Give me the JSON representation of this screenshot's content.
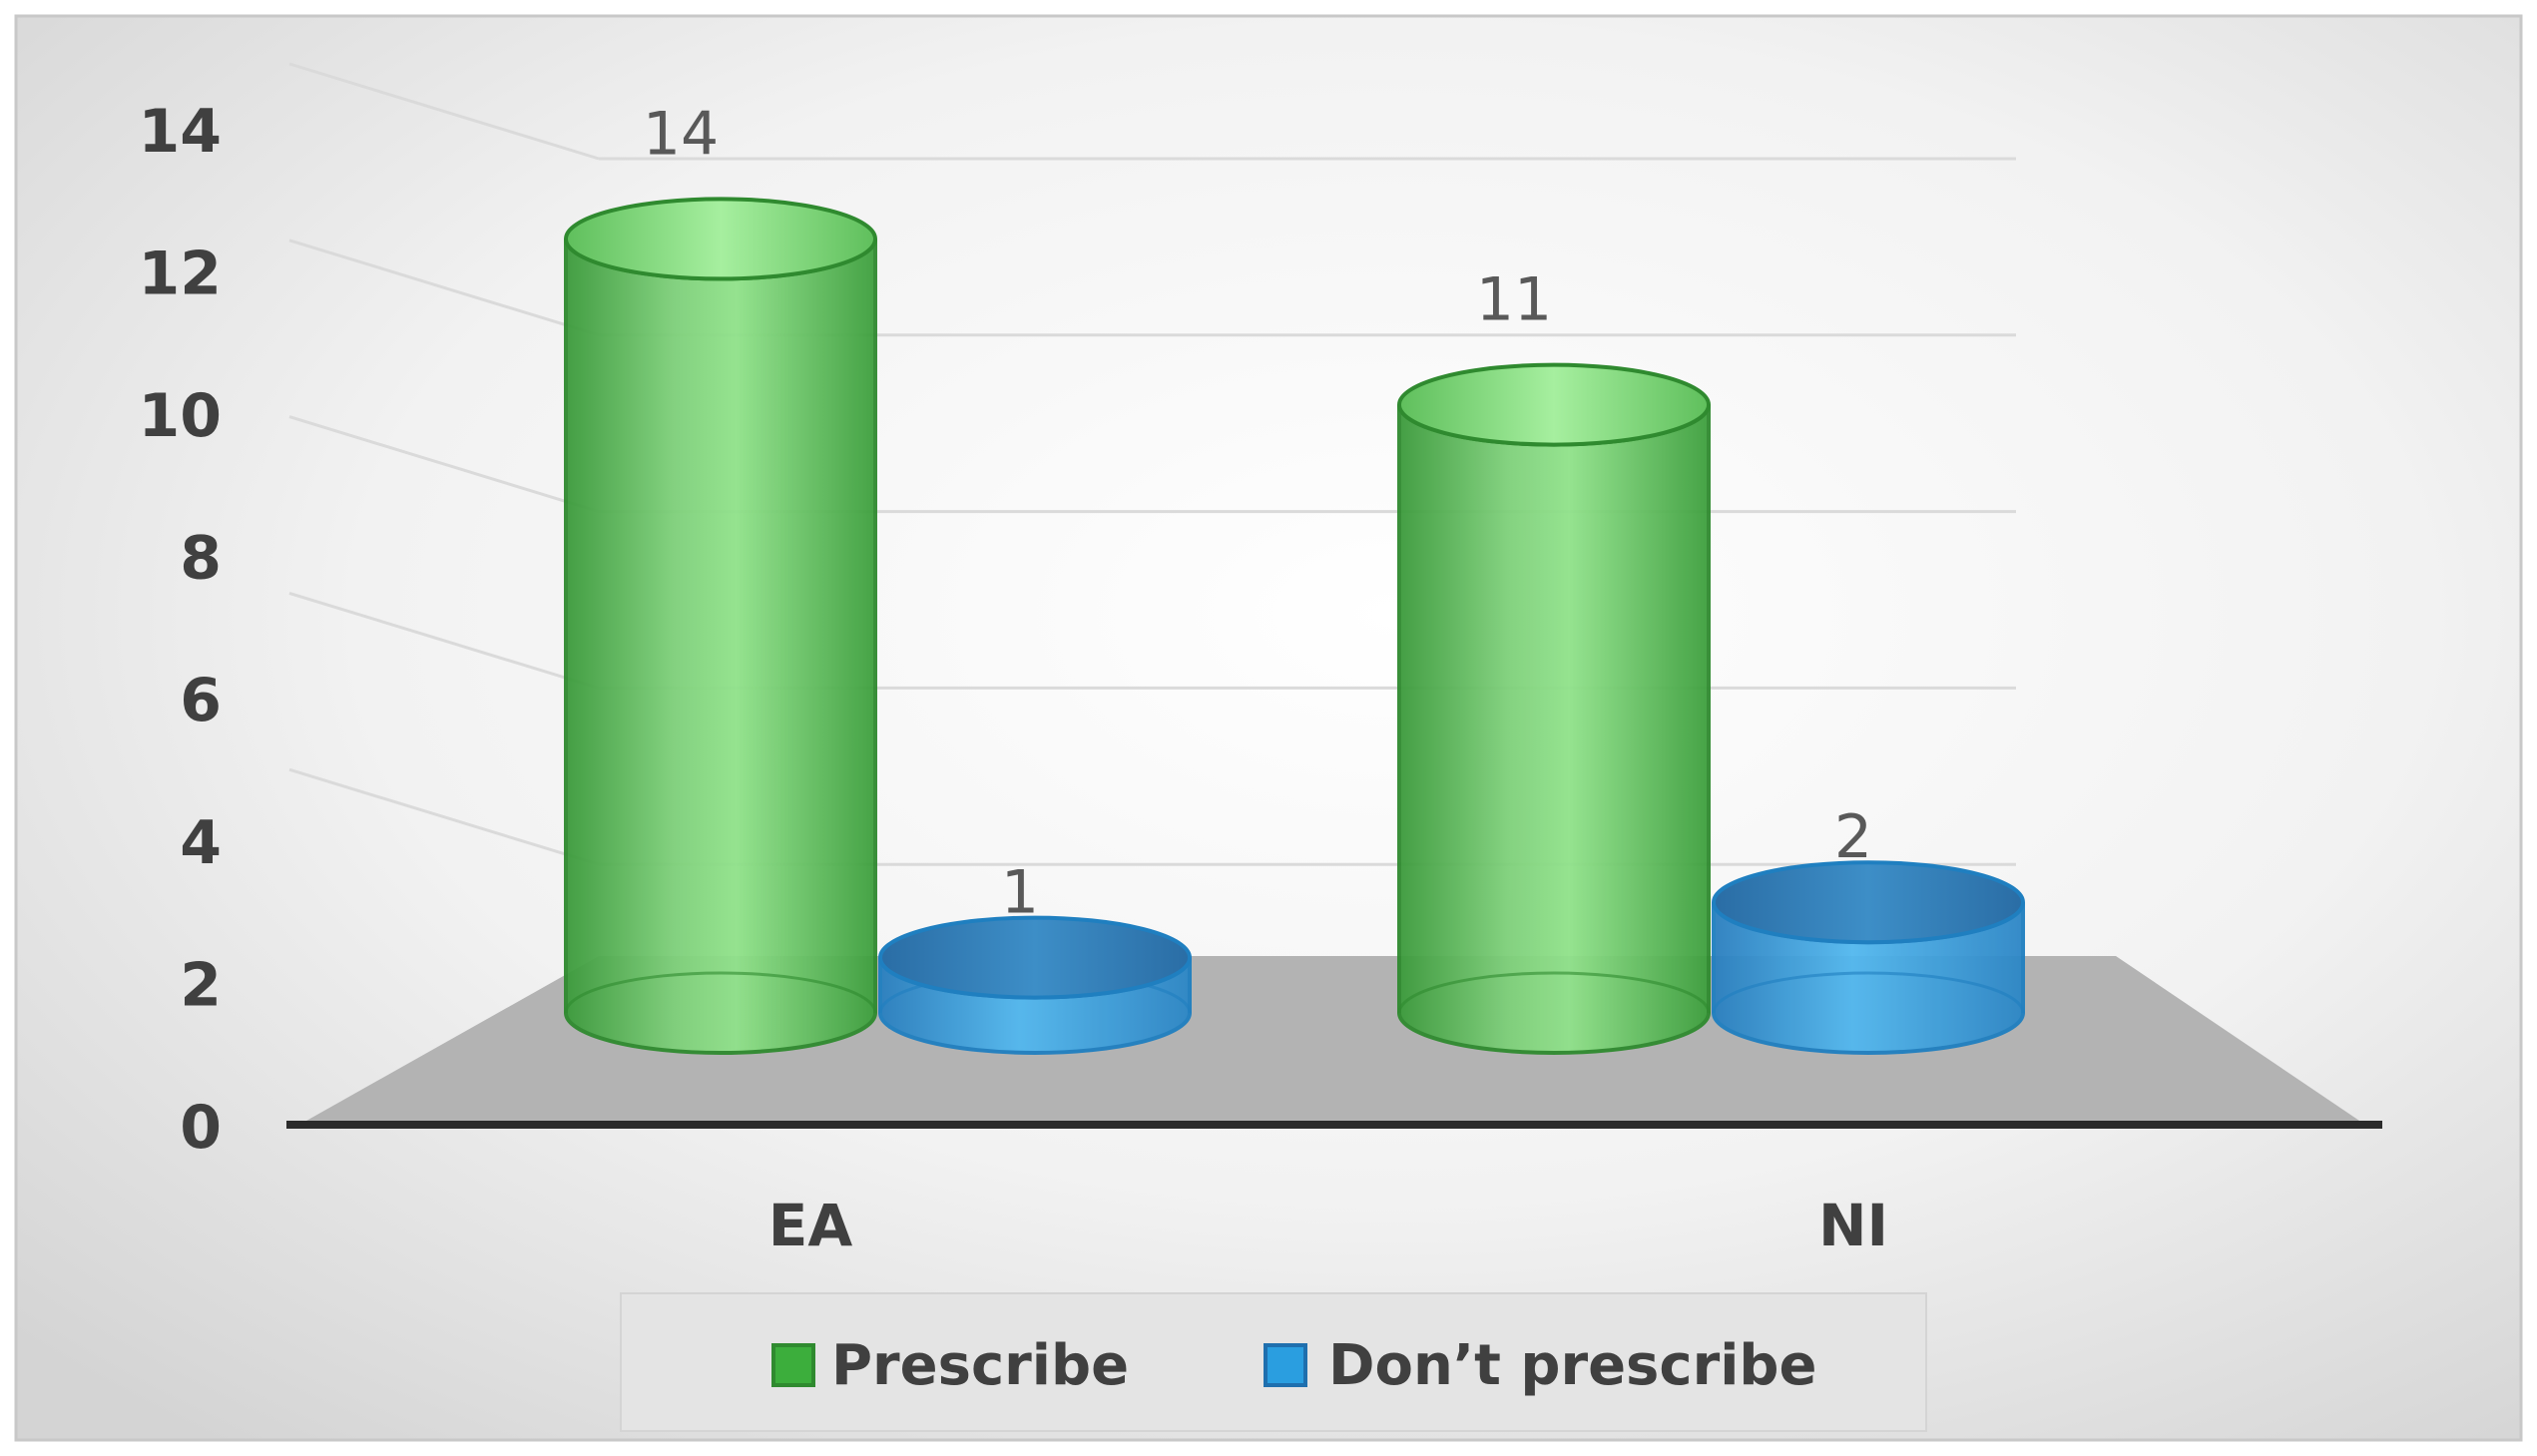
{
  "chart_data": {
    "type": "bar",
    "style": "3d-cylinder",
    "categories": [
      "EA",
      "NI"
    ],
    "series": [
      {
        "name": "Prescribe",
        "values": [
          14,
          11
        ],
        "color": "#3cae3c"
      },
      {
        "name": "Don’t prescribe",
        "values": [
          1,
          2
        ],
        "color": "#2a9ee0"
      }
    ],
    "ylim": [
      0,
      14
    ],
    "yticks": [
      "0",
      "2",
      "4",
      "6",
      "8",
      "10",
      "12",
      "14"
    ],
    "grid": true,
    "legend_position": "bottom",
    "colors": {
      "frame": "#d7d7d7",
      "plot_background": "#f3f3f3",
      "floor": "#b3b3b3",
      "axis": "#2b2b2b",
      "tick_text": "#404040",
      "data_label_text": "#595959"
    }
  }
}
